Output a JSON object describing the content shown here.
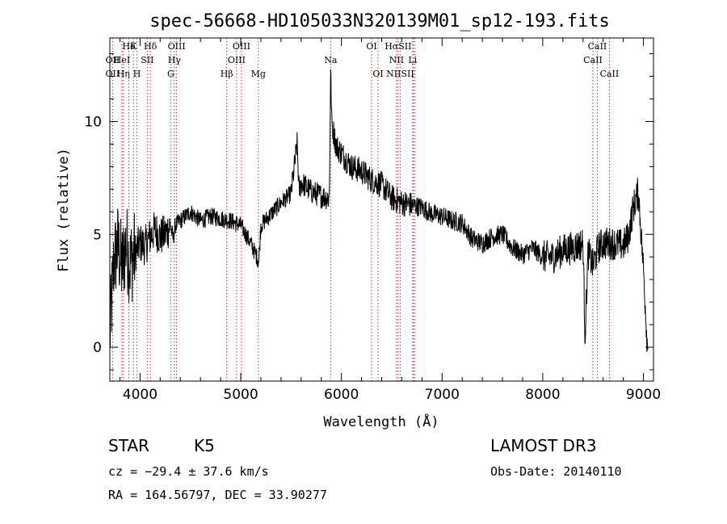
{
  "chart_data": {
    "type": "line",
    "title": "spec-56668-HD105033N320139M01_sp12-193.fits",
    "xlabel": "Wavelength (Å)",
    "ylabel": "Flux (relative)",
    "xlim": [
      3700,
      9100
    ],
    "ylim": [
      -1.5,
      13.7
    ],
    "xticks": [
      4000,
      5000,
      6000,
      7000,
      8000,
      9000
    ],
    "yticks": [
      0,
      5,
      10
    ],
    "spectral_lines": [
      {
        "label": "Hδ",
        "x": 3889,
        "row": 0
      },
      {
        "label": "K",
        "x": 3934,
        "row": 0
      },
      {
        "label": "Hδ",
        "x": 4102,
        "row": 0
      },
      {
        "label": "OII",
        "x": 3727,
        "row": 1
      },
      {
        "label": "HeI",
        "x": 3820,
        "row": 1
      },
      {
        "label": "SII",
        "x": 4072,
        "row": 1
      },
      {
        "label": "OII",
        "x": 3727,
        "row": 2
      },
      {
        "label": "Hη",
        "x": 3835,
        "row": 2
      },
      {
        "label": "H",
        "x": 3969,
        "row": 2
      },
      {
        "label": "OIII",
        "x": 4363,
        "row": 0
      },
      {
        "label": "Hγ",
        "x": 4341,
        "row": 1
      },
      {
        "label": "G",
        "x": 4305,
        "row": 2
      },
      {
        "label": "OIII",
        "x": 5007,
        "row": 0
      },
      {
        "label": "OIII",
        "x": 4959,
        "row": 1
      },
      {
        "label": "Hβ",
        "x": 4861,
        "row": 2
      },
      {
        "label": "Mg",
        "x": 5175,
        "row": 2
      },
      {
        "label": "Na",
        "x": 5893,
        "row": 1
      },
      {
        "label": "OI",
        "x": 6300,
        "row": 0
      },
      {
        "label": "OI",
        "x": 6364,
        "row": 2
      },
      {
        "label": "HαSII",
        "x": 6563,
        "row": 0
      },
      {
        "label": "NII",
        "x": 6548,
        "row": 1
      },
      {
        "label": "Li",
        "x": 6708,
        "row": 1
      },
      {
        "label": "NIISII",
        "x": 6584,
        "row": 2
      },
      {
        "label": "CaII",
        "x": 8542,
        "row": 0
      },
      {
        "label": "CaII",
        "x": 8498,
        "row": 1
      },
      {
        "label": "CaII",
        "x": 8662,
        "row": 2
      }
    ],
    "line_markers": [
      3727,
      3820,
      3835,
      3889,
      3934,
      3969,
      4072,
      4102,
      4305,
      4341,
      4363,
      4861,
      4959,
      5007,
      5175,
      5893,
      6300,
      6364,
      6548,
      6563,
      6584,
      6708,
      6716,
      6731,
      8498,
      8542,
      8662
    ],
    "series": [
      {
        "name": "flux",
        "x": [
          3700,
          3740,
          3780,
          3820,
          3860,
          3900,
          3950,
          4000,
          4050,
          4100,
          4150,
          4200,
          4250,
          4300,
          4330,
          4350,
          4400,
          4450,
          4500,
          4600,
          4700,
          4800,
          4900,
          5000,
          5100,
          5180,
          5200,
          5300,
          5400,
          5500,
          5560,
          5580,
          5600,
          5700,
          5800,
          5880,
          5893,
          5905,
          5950,
          6000,
          6100,
          6200,
          6300,
          6400,
          6500,
          6600,
          6700,
          6800,
          6900,
          7000,
          7100,
          7200,
          7300,
          7400,
          7500,
          7600,
          7700,
          7800,
          7900,
          8000,
          8100,
          8200,
          8300,
          8400,
          8420,
          8450,
          8500,
          8550,
          8600,
          8700,
          8800,
          8850,
          8900,
          8950,
          9000,
          9040
        ],
        "y": [
          0.5,
          3.8,
          4.5,
          3.5,
          4.6,
          3.7,
          4.2,
          4.6,
          4.5,
          4.9,
          5.2,
          4.9,
          5.0,
          5.4,
          4.8,
          5.4,
          5.6,
          5.8,
          6.0,
          5.6,
          5.8,
          5.7,
          5.6,
          5.4,
          4.6,
          3.8,
          5.4,
          5.9,
          6.4,
          6.8,
          9.0,
          6.9,
          7.3,
          6.9,
          6.7,
          6.6,
          12.2,
          9.9,
          8.9,
          8.6,
          8.0,
          7.8,
          7.4,
          7.2,
          6.6,
          6.4,
          6.3,
          6.2,
          5.9,
          5.8,
          5.6,
          5.5,
          4.8,
          4.6,
          4.9,
          5.0,
          4.4,
          4.1,
          4.4,
          4.0,
          4.0,
          4.3,
          4.4,
          4.6,
          0.5,
          4.2,
          3.6,
          4.4,
          4.6,
          4.6,
          4.5,
          4.9,
          6.2,
          6.9,
          3.5,
          0.0
        ]
      }
    ]
  },
  "footer": {
    "object_class": "STAR",
    "subclass": "K5",
    "survey": "LAMOST DR3",
    "redshift": "cz = −29.4 ± 37.6 km/s",
    "obs_date": "Obs-Date: 20140110",
    "coords": "RA = 164.56797, DEC =  33.90277"
  }
}
